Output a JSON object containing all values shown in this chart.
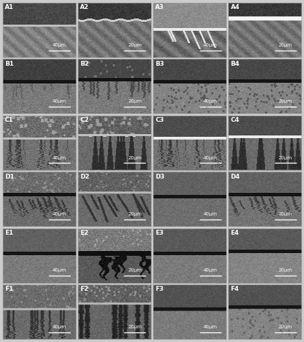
{
  "grid_rows": 6,
  "grid_cols": 4,
  "labels": [
    [
      "A1",
      "A2",
      "A3",
      "A4"
    ],
    [
      "B1",
      "B2",
      "B3",
      "B4"
    ],
    [
      "C1",
      "C2",
      "C3",
      "C4"
    ],
    [
      "D1",
      "D2",
      "D3",
      "D4"
    ],
    [
      "E1",
      "E2",
      "E3",
      "E4"
    ],
    [
      "F1",
      "F2",
      "F3",
      "F4"
    ]
  ],
  "scale_bars": [
    [
      "40μm",
      "20μm",
      "40μm",
      "20μm"
    ],
    [
      "40μm",
      "20μm",
      "40μm",
      "20μm"
    ],
    [
      "40μm",
      "20μm",
      "40μm",
      "20μm"
    ],
    [
      "40μm",
      "20μm",
      "40μm",
      "20μm"
    ],
    [
      "40μm",
      "20μm",
      "40μm",
      "20μm"
    ],
    [
      "40μm",
      "20μm",
      "40μm",
      "20μm"
    ]
  ],
  "label_fontsize": 6.5,
  "scalebar_fontsize": 5.0,
  "border_color": "#aaaaaa",
  "border_width": 0.5,
  "fig_bg": "#cccccc"
}
